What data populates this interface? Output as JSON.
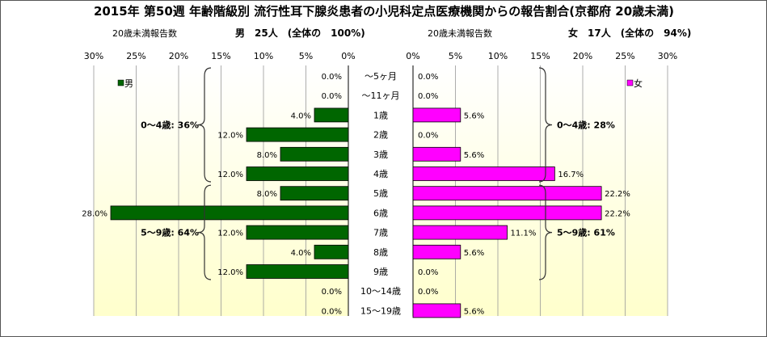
{
  "title": "2015年 第50週 年齢階級別 流行性耳下腺炎患者の小児科定点医療機関からの報告割合(京都府 20歳未満)",
  "left_header": {
    "caption": "20歳未満報告数",
    "summary": "男　25人　(全体の　100%)"
  },
  "right_header": {
    "caption": "20歳未満報告数",
    "summary": "女　17人　(全体の　94%)"
  },
  "colors": {
    "male": "#006600",
    "female": "#ff00ff",
    "background_top": "#ffffff",
    "background_bottom": "#ffffcc"
  },
  "chart_data": {
    "type": "bar",
    "orientation": "horizontal-butterfly",
    "categories": [
      "～5ヶ月",
      "～11ヶ月",
      "1歳",
      "2歳",
      "3歳",
      "4歳",
      "5歳",
      "6歳",
      "7歳",
      "8歳",
      "9歳",
      "10～14歳",
      "15～19歳"
    ],
    "series": [
      {
        "name": "男",
        "values": [
          0.0,
          0.0,
          4.0,
          12.0,
          8.0,
          12.0,
          8.0,
          28.0,
          12.0,
          4.0,
          12.0,
          0.0,
          0.0
        ],
        "labels": [
          "0.0%",
          "0.0%",
          "4.0%",
          "12.0%",
          "8.0%",
          "12.0%",
          "8.0%",
          "28.0%",
          "12.0%",
          "4.0%",
          "12.0%",
          "0.0%",
          "0.0%"
        ]
      },
      {
        "name": "女",
        "values": [
          0.0,
          0.0,
          5.6,
          0.0,
          5.6,
          16.7,
          22.2,
          22.2,
          11.1,
          5.6,
          0.0,
          0.0,
          5.6
        ],
        "labels": [
          "0.0%",
          "0.0%",
          "5.6%",
          "0.0%",
          "5.6%",
          "16.7%",
          "22.2%",
          "22.2%",
          "11.1%",
          "5.6%",
          "0.0%",
          "0.0%",
          "5.6%"
        ]
      }
    ],
    "xlim": [
      0,
      30
    ],
    "left_ticks": [
      "30%",
      "25%",
      "20%",
      "15%",
      "10%",
      "5%",
      "0%"
    ],
    "right_ticks": [
      "0%",
      "5%",
      "10%",
      "15%",
      "20%",
      "25%",
      "30%"
    ],
    "groups": {
      "male": [
        {
          "label": "0～4歳: 36%",
          "from": 0,
          "to": 5
        },
        {
          "label": "5～9歳: 64%",
          "from": 6,
          "to": 10
        }
      ],
      "female": [
        {
          "label": "0～4歳: 28%",
          "from": 0,
          "to": 5
        },
        {
          "label": "5～9歳: 61%",
          "from": 6,
          "to": 10
        }
      ]
    },
    "grid": true,
    "legend": {
      "male": "男",
      "female": "女",
      "male_position": "top-left",
      "female_position": "top-right"
    }
  }
}
